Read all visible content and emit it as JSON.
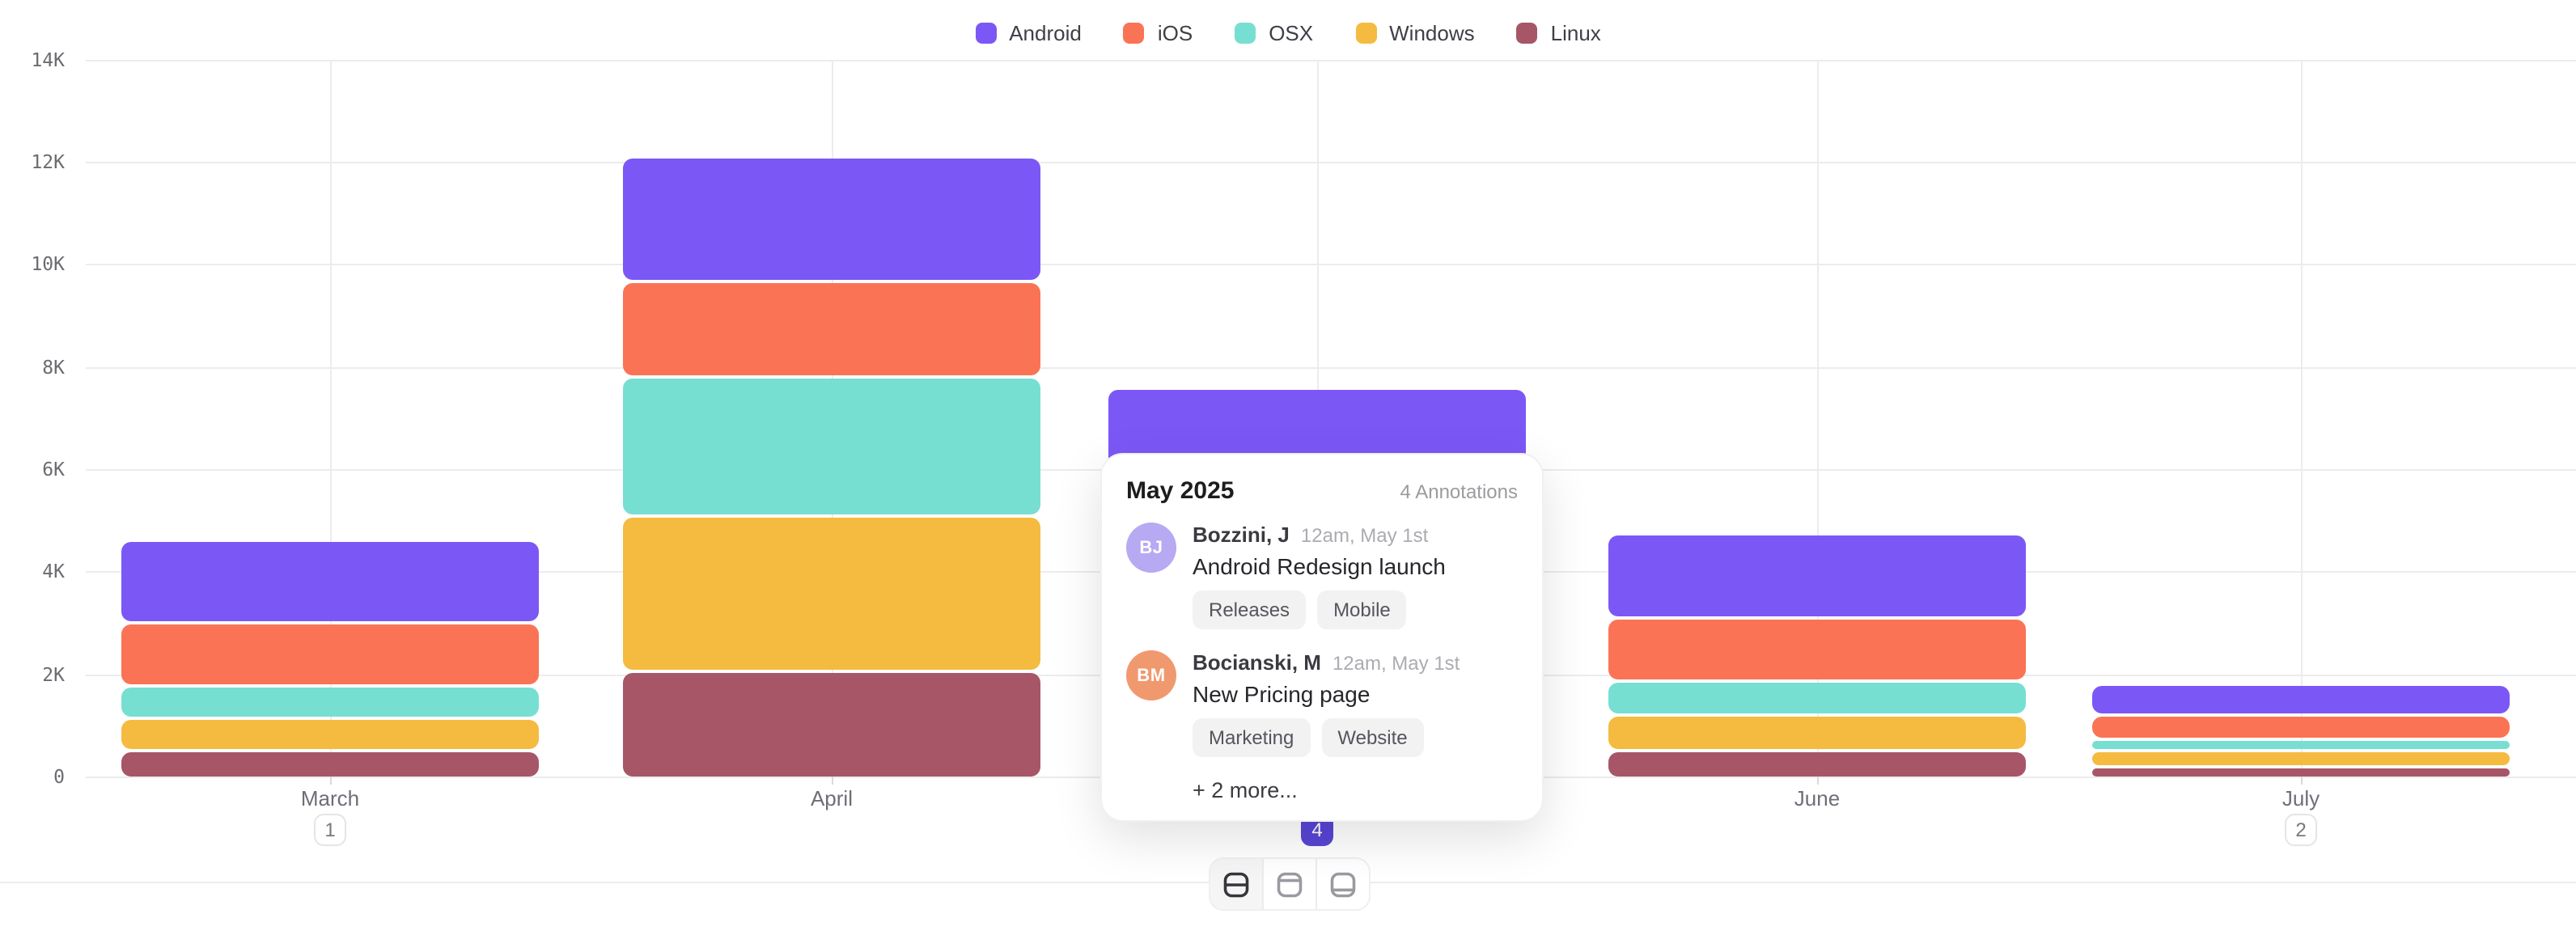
{
  "chart_data": {
    "type": "bar",
    "stacked": true,
    "categories": [
      "March",
      "April",
      "May",
      "June",
      "July"
    ],
    "series": [
      {
        "name": "Android",
        "color": "#7B58F6",
        "values": [
          1550,
          2380,
          1800,
          1555,
          555
        ]
      },
      {
        "name": "iOS",
        "color": "#FB7355",
        "values": [
          1190,
          1775,
          1450,
          1190,
          395
        ]
      },
      {
        "name": "OSX",
        "color": "#77DFD1",
        "values": [
          555,
          2665,
          1400,
          600,
          175
        ]
      },
      {
        "name": "Windows",
        "color": "#F4BB40",
        "values": [
          585,
          2970,
          1550,
          620,
          235
        ]
      },
      {
        "name": "Linux",
        "color": "#A75668",
        "values": [
          460,
          2015,
          1100,
          475,
          165
        ]
      }
    ],
    "stack_order": "bottom-to-top: Linux, Windows, OSX, iOS, Android",
    "ylim": [
      0,
      14000
    ],
    "y_tick_labels": [
      "0",
      "2K",
      "4K",
      "6K",
      "8K",
      "10K",
      "12K",
      "14K"
    ],
    "grid": "horizontal gridlines at each 2K tick; vertical gridline at each month center",
    "legend_position": "top-center",
    "annotation_badges": [
      {
        "month": "March",
        "count": "1",
        "active": false
      },
      {
        "month": "May",
        "count": "4",
        "active": true
      },
      {
        "month": "July",
        "count": "2",
        "active": false
      }
    ]
  },
  "tooltip": {
    "title": "May 2025",
    "annotations_count": "4 Annotations",
    "annotations": [
      {
        "initials": "BJ",
        "avatar_color": "#B7A9F2",
        "author": "Bozzini, J",
        "time": "12am, May 1st",
        "text": "Android Redesign launch",
        "tags": [
          "Releases",
          "Mobile"
        ]
      },
      {
        "initials": "BM",
        "avatar_color": "#F0996F",
        "author": "Bocianski, M",
        "time": "12am, May 1st",
        "text": "New Pricing page",
        "tags": [
          "Marketing",
          "Website"
        ]
      }
    ],
    "more_label": "+ 2 more..."
  },
  "view_toggle": {
    "options": [
      "layout-split-rows",
      "layout-header-top",
      "layout-footer-bottom"
    ],
    "active": "layout-split-rows"
  },
  "ui": {
    "background": "#ffffff",
    "grid_color": "#ececee",
    "axis_tick_color": "#d9d9de",
    "y_tick_text_color": "#6b6b70",
    "month_text_color": "#6e6e76",
    "legend_text_color": "#3f3f46",
    "badge_bg": "#ffffff",
    "badge_border": "#e5e5e7",
    "badge_text": "#77777e",
    "badge_active_bg": "#5846D5",
    "badge_active_text": "#ffffff"
  }
}
